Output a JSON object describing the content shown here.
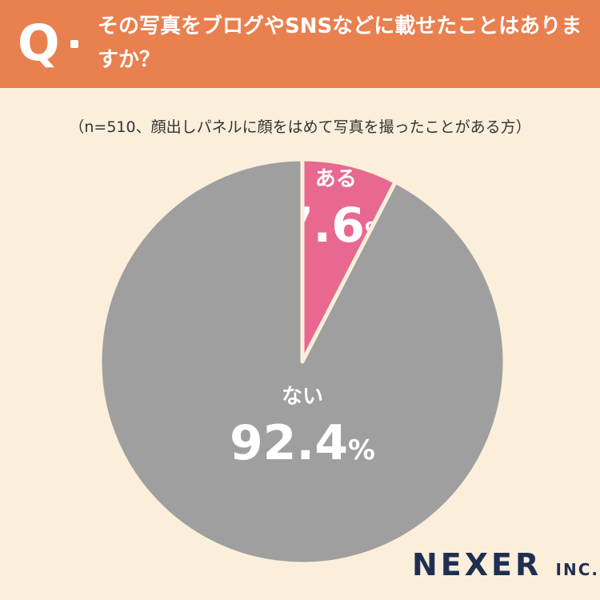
{
  "header": {
    "mark": "Q",
    "question": "その写真をブログやSNSなどに載せたことはありますか？"
  },
  "note": "（n=510、顔出しパネルに顔をはめて写真を撮ったことがある方）",
  "chart_data": {
    "type": "pie",
    "title": "",
    "slices": [
      {
        "label": "ある",
        "value": 7.6,
        "unit": "%",
        "color": "#e9688f"
      },
      {
        "label": "ない",
        "value": 92.4,
        "unit": "%",
        "color": "#9f9f9f"
      }
    ],
    "start_angle_deg": 0,
    "direction": "clockwise"
  },
  "logo": {
    "main": "NEXER",
    "suffix": "INC."
  }
}
